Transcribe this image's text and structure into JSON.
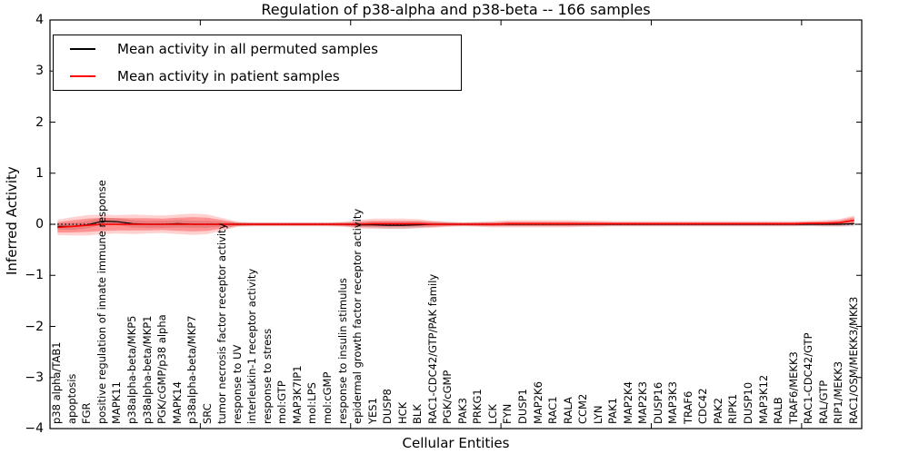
{
  "chart_data": {
    "type": "line",
    "title": "Regulation of p38-alpha and p38-beta -- 166 samples",
    "xlabel": "Cellular Entities",
    "ylabel": "Inferred Activity",
    "ylim": [
      -4,
      4
    ],
    "grid": false,
    "legend_position": "upper-left",
    "zero_reference_line": {
      "style": "dotted",
      "color": "#000000",
      "y": 0
    },
    "ytick_values": [
      4,
      3,
      2,
      1,
      0,
      -1,
      -2,
      -3,
      -4
    ],
    "ytick_labels": [
      "4",
      "3",
      "2",
      "1",
      "0",
      "−1",
      "−2",
      "−3",
      "−4"
    ],
    "xtick_indices": [
      10,
      20,
      30,
      40,
      50
    ],
    "categories": [
      "p38 alpha/TAB1",
      "apoptosis",
      "FGR",
      "positive regulation of innate immune response",
      "MAPK11",
      "p38alpha-beta/MKP5",
      "p38alpha-beta/MKP1",
      "PGK/cGMP/p38 alpha",
      "MAPK14",
      "p38alpha-beta/MKP7",
      "SRC",
      "tumor necrosis factor receptor activity",
      "response to UV",
      "interleukin-1 receptor activity",
      "response to stress",
      "mol:GTP",
      "MAP3K7IP1",
      "mol:LPS",
      "mol:cGMP",
      "response to insulin stimulus",
      "epidermal growth factor receptor activity",
      "YES1",
      "DUSP8",
      "HCK",
      "BLK",
      "RAC1-CDC42/GTP/PAK family",
      "PGK/cGMP",
      "PAK3",
      "PRKG1",
      "LCK",
      "FYN",
      "DUSP1",
      "MAP2K6",
      "RAC1",
      "RALA",
      "CCM2",
      "LYN",
      "PAK1",
      "MAP2K4",
      "MAP2K3",
      "DUSP16",
      "MAP3K3",
      "TRAF6",
      "CDC42",
      "PAK2",
      "RIPK1",
      "DUSP10",
      "MAP3K12",
      "RALB",
      "TRAF6/MEKK3",
      "RAC1-CDC42/GTP",
      "RAL/GTP",
      "RIP1/MEKK3",
      "RAC1/OSM/MEKK3/MKK3"
    ],
    "series": [
      {
        "key": "permuted",
        "name": "Mean activity in all permuted samples",
        "color": "#000000",
        "values": [
          -0.04,
          -0.04,
          -0.01,
          0.06,
          0.05,
          0.01,
          0,
          0,
          0.01,
          0,
          0,
          0,
          0,
          0,
          0,
          0,
          0,
          0,
          0,
          0,
          -0.01,
          -0.01,
          -0.02,
          -0.02,
          -0.01,
          0,
          0,
          0,
          0,
          0,
          0,
          0,
          0,
          0,
          0,
          0,
          0,
          0,
          0,
          0,
          0,
          0,
          0,
          0,
          0,
          0,
          0,
          0,
          0,
          0,
          0,
          0,
          0,
          0.01
        ]
      },
      {
        "key": "patient",
        "name": "Mean activity in patient samples",
        "color": "#ff0000",
        "values": [
          -0.06,
          -0.04,
          -0.02,
          0,
          0,
          0,
          0,
          0,
          0,
          0,
          0,
          0,
          0,
          0,
          0,
          0,
          0,
          0,
          0,
          0,
          0,
          0.01,
          0.01,
          0.01,
          0.01,
          0,
          0,
          0,
          0,
          0,
          0.01,
          0.01,
          0.01,
          0.01,
          0.01,
          0.01,
          0.01,
          0.01,
          0.01,
          0.01,
          0.01,
          0.01,
          0.01,
          0.01,
          0.01,
          0.01,
          0.01,
          0.01,
          0.01,
          0.01,
          0.02,
          0.02,
          0.03,
          0.08
        ]
      }
    ],
    "bands": [
      {
        "name": "permuted-spread-band",
        "center": "permuted",
        "color": "#999999",
        "opacity": 0.35,
        "half_widths": [
          0.06,
          0.07,
          0.07,
          0.07,
          0.07,
          0.07,
          0.07,
          0.07,
          0.07,
          0.07,
          0.07,
          0.05,
          0.035,
          0.03,
          0.03,
          0.03,
          0.03,
          0.03,
          0.03,
          0.035,
          0.05,
          0.06,
          0.065,
          0.065,
          0.06,
          0.05,
          0.04,
          0.035,
          0.035,
          0.04,
          0.04,
          0.04,
          0.04,
          0.04,
          0.04,
          0.04,
          0.035,
          0.035,
          0.035,
          0.035,
          0.035,
          0.035,
          0.035,
          0.035,
          0.035,
          0.035,
          0.035,
          0.035,
          0.035,
          0.035,
          0.035,
          0.04,
          0.045,
          0.05
        ]
      },
      {
        "name": "patient-spread-band-outer",
        "center": "patient",
        "color": "#ff0000",
        "opacity": 0.18,
        "half_widths": [
          0.15,
          0.18,
          0.2,
          0.19,
          0.18,
          0.19,
          0.18,
          0.17,
          0.19,
          0.21,
          0.19,
          0.12,
          0.05,
          0.04,
          0.04,
          0.04,
          0.04,
          0.04,
          0.04,
          0.05,
          0.08,
          0.1,
          0.1,
          0.1,
          0.09,
          0.07,
          0.05,
          0.04,
          0.05,
          0.06,
          0.07,
          0.07,
          0.07,
          0.07,
          0.07,
          0.06,
          0.06,
          0.05,
          0.05,
          0.05,
          0.05,
          0.05,
          0.05,
          0.05,
          0.05,
          0.05,
          0.05,
          0.05,
          0.05,
          0.05,
          0.05,
          0.06,
          0.07,
          0.09
        ]
      },
      {
        "name": "patient-spread-band-inner",
        "center": "patient",
        "color": "#ff0000",
        "opacity": 0.3,
        "half_widths": [
          0.1,
          0.12,
          0.13,
          0.13,
          0.12,
          0.12,
          0.12,
          0.11,
          0.13,
          0.14,
          0.13,
          0.08,
          0.03,
          0.025,
          0.025,
          0.025,
          0.025,
          0.025,
          0.025,
          0.03,
          0.05,
          0.06,
          0.06,
          0.06,
          0.055,
          0.045,
          0.03,
          0.025,
          0.03,
          0.035,
          0.04,
          0.04,
          0.04,
          0.04,
          0.04,
          0.035,
          0.035,
          0.03,
          0.03,
          0.03,
          0.03,
          0.03,
          0.03,
          0.03,
          0.03,
          0.03,
          0.03,
          0.03,
          0.03,
          0.03,
          0.03,
          0.035,
          0.045,
          0.06
        ]
      }
    ]
  }
}
